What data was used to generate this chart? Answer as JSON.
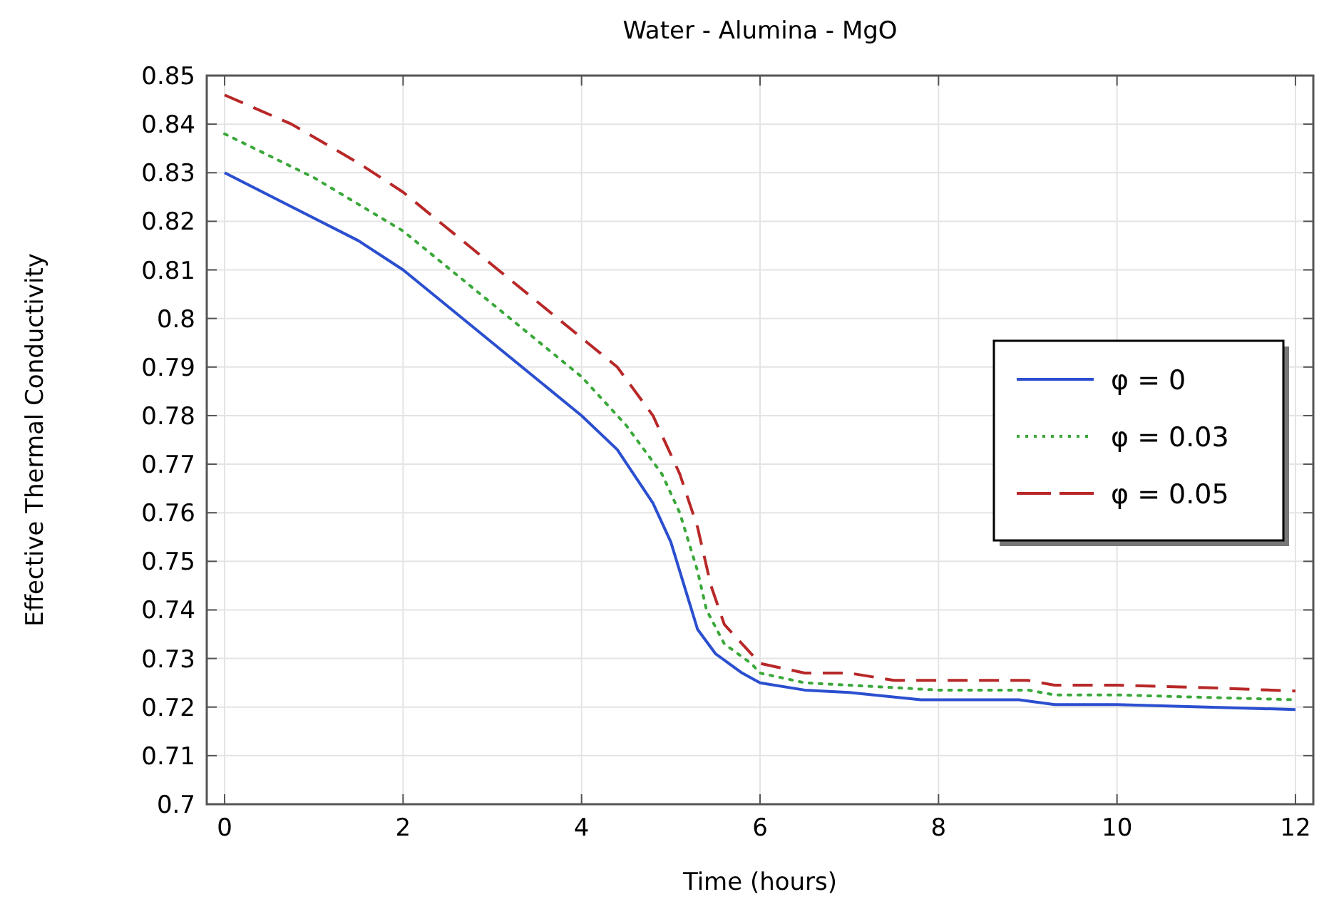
{
  "chart_data": {
    "type": "line",
    "title": "Water - Alumina - MgO",
    "xlabel": "Time (hours)",
    "ylabel": "Effective Thermal Conductivity",
    "xlim": [
      -0.2,
      12.2
    ],
    "xticks": [
      0,
      2,
      4,
      6,
      8,
      10,
      12
    ],
    "ylim": [
      0.7,
      0.85
    ],
    "yticks": [
      0.7,
      0.71,
      0.72,
      0.73,
      0.74,
      0.75,
      0.76,
      0.77,
      0.78,
      0.79,
      0.8,
      0.81,
      0.82,
      0.83,
      0.84,
      0.85
    ],
    "grid": true,
    "legend": "right",
    "marker": "none",
    "series": [
      {
        "name": "φ = 0",
        "color": "#2b4fcf",
        "line_style": "solid",
        "x": [
          0,
          0.75,
          1.5,
          2,
          3,
          4,
          4.4,
          4.8,
          5,
          5.2,
          5.3,
          5.5,
          5.8,
          6,
          6.5,
          7,
          7.8,
          8.9,
          9.3,
          10,
          11,
          12
        ],
        "values": [
          0.83,
          0.823,
          0.816,
          0.81,
          0.795,
          0.78,
          0.773,
          0.762,
          0.754,
          0.742,
          0.736,
          0.731,
          0.727,
          0.725,
          0.7235,
          0.723,
          0.7215,
          0.7215,
          0.7205,
          0.7205,
          0.72,
          0.7195
        ]
      },
      {
        "name": "φ = 0.03",
        "color": "#3aa83a",
        "line_style": "dotted",
        "x": [
          0,
          1,
          2,
          3,
          4,
          4.5,
          4.9,
          5.1,
          5.3,
          5.4,
          5.6,
          5.9,
          6,
          6.5,
          7,
          8,
          9,
          9.3,
          10,
          11,
          12
        ],
        "values": [
          0.838,
          0.829,
          0.818,
          0.803,
          0.788,
          0.778,
          0.768,
          0.76,
          0.748,
          0.74,
          0.733,
          0.729,
          0.727,
          0.725,
          0.7245,
          0.7235,
          0.7235,
          0.7225,
          0.7225,
          0.722,
          0.7215
        ]
      },
      {
        "name": "φ = 0.05",
        "color": "#b82828",
        "line_style": "dashed",
        "x": [
          0,
          0.75,
          1.5,
          2,
          3,
          4,
          4.4,
          4.8,
          5.1,
          5.3,
          5.45,
          5.6,
          5.9,
          6,
          6.5,
          7,
          7.5,
          8,
          9,
          9.3,
          10,
          11,
          12
        ],
        "values": [
          0.846,
          0.84,
          0.832,
          0.826,
          0.811,
          0.796,
          0.79,
          0.78,
          0.768,
          0.757,
          0.745,
          0.737,
          0.731,
          0.729,
          0.727,
          0.727,
          0.7255,
          0.7255,
          0.7255,
          0.7245,
          0.7245,
          0.724,
          0.7233
        ]
      }
    ]
  }
}
